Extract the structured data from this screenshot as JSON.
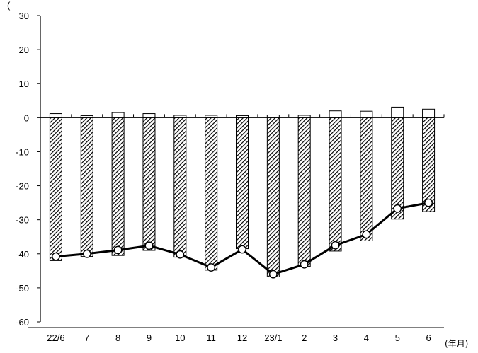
{
  "chart_data": {
    "type": "bar",
    "categories": [
      "22/6",
      "7",
      "8",
      "9",
      "10",
      "11",
      "12",
      "23/1",
      "2",
      "3",
      "4",
      "5",
      "6"
    ],
    "ylim": [
      -60,
      30
    ],
    "yticks": [
      "30",
      "20",
      "10",
      "0",
      "-10",
      "-20",
      "-30",
      "-40",
      "-50",
      "-60"
    ],
    "y_axis_unit": "(",
    "x_axis_unit": "(年月)",
    "grid": false,
    "legend": "none",
    "series": [
      {
        "type": "bar",
        "style": "outline",
        "values": [
          1.2,
          0.6,
          1.5,
          1.2,
          0.7,
          0.7,
          0.6,
          0.8,
          0.7,
          2.0,
          1.9,
          3.1,
          2.5
        ]
      },
      {
        "type": "bar",
        "style": "hatched",
        "values": [
          -42.0,
          -40.8,
          -40.5,
          -39.0,
          -41.0,
          -44.8,
          -38.5,
          -46.8,
          -43.7,
          -39.2,
          -36.2,
          -29.8,
          -27.6
        ]
      },
      {
        "type": "line",
        "marker": "circle",
        "values": [
          -40.8,
          -40.0,
          -38.9,
          -37.6,
          -40.2,
          -44.0,
          -38.7,
          -46.0,
          -43.1,
          -37.5,
          -34.3,
          -26.7,
          -25.0
        ]
      }
    ],
    "colors": {
      "bar_fill": "#ffffff",
      "bar_stroke": "#000000",
      "hatch": "#000000",
      "line": "#000000",
      "marker_fill": "#ffffff"
    }
  }
}
